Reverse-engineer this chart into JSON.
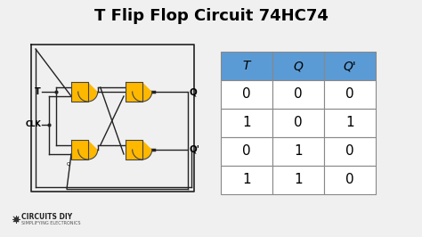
{
  "title": "T Flip Flop Circuit 74HC74",
  "title_fontsize": 13,
  "title_fontweight": "bold",
  "background_color": "#f0f0f0",
  "table_headers": [
    "T",
    "Q",
    "Q'"
  ],
  "table_data": [
    [
      "0",
      "0",
      "0"
    ],
    [
      "1",
      "0",
      "1"
    ],
    [
      "0",
      "1",
      "0"
    ],
    [
      "1",
      "1",
      "0"
    ]
  ],
  "header_bg": "#5b9bd5",
  "header_text_color": "#000000",
  "row_bg": "#ffffff",
  "grid_color": "#888888",
  "gate_color": "#FFB800",
  "gate_outline": "#444444",
  "wire_color": "#222222",
  "text_color": "#000000",
  "logo_text": "CIRCUITS DIY",
  "logo_subtext": "SIMPLIFYING ELECTRONICS"
}
